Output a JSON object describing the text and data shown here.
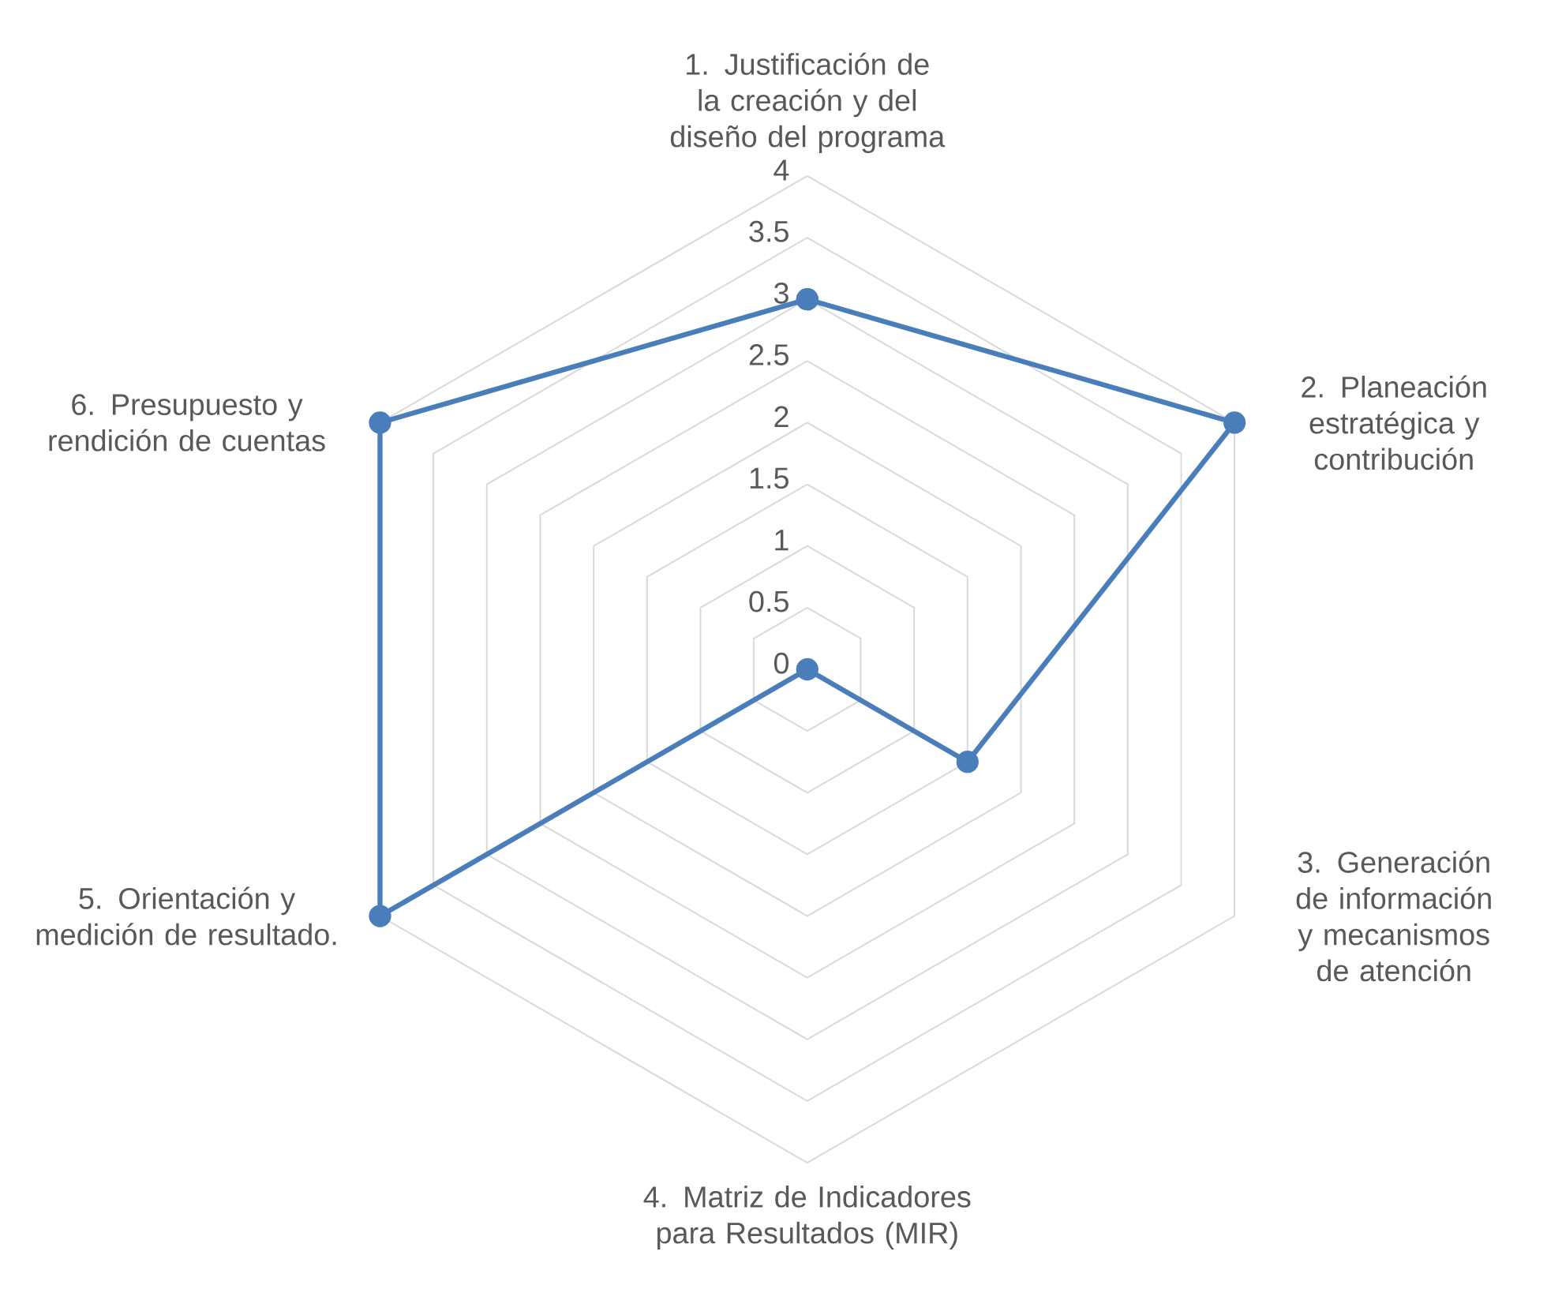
{
  "chart_data": {
    "type": "radar",
    "categories": [
      "1. Justificación de la creación y del diseño del programa",
      "2. Planeación estratégica y contribución",
      "3. Generación de información y mecanismos de atención",
      "4. Matriz de Indicadores para Resultados (MIR)",
      "5. Orientación y medición de resultado.",
      "6. Presupuesto y rendición de cuentas"
    ],
    "series": [
      {
        "color": "#4a7ebb",
        "values": [
          3,
          4,
          1.5,
          0,
          4,
          4
        ]
      }
    ],
    "ylim": [
      0,
      4
    ],
    "yticks": [
      0,
      0.5,
      1,
      1.5,
      2,
      2.5,
      3,
      3.5,
      4
    ],
    "grid": true,
    "marker": "circle"
  }
}
